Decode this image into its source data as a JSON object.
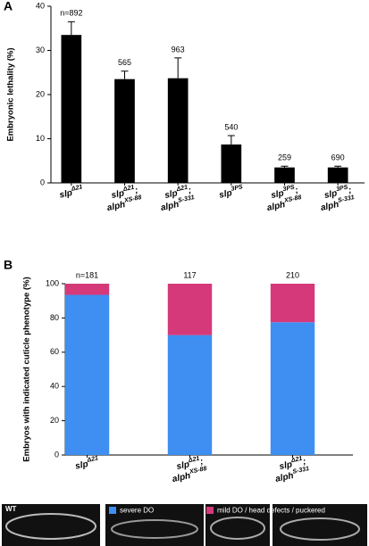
{
  "chart_data": [
    {
      "type": "bar",
      "panel": "A",
      "y_label": "Embryonic lethality (%)",
      "categories": [
        [
          [
            "slp",
            "Δ21"
          ]
        ],
        [
          [
            "slp",
            "Δ21",
            ";"
          ],
          [
            "alph",
            "XS-88"
          ]
        ],
        [
          [
            "slp",
            "Δ21",
            ";"
          ],
          [
            "alph",
            "S-331"
          ]
        ],
        [
          [
            "slp",
            "3PS"
          ]
        ],
        [
          [
            "slp",
            "3PS",
            ";"
          ],
          [
            "alph",
            "XS-88"
          ]
        ],
        [
          [
            "slp",
            "3PS",
            ";"
          ],
          [
            "alph",
            "S-331"
          ]
        ]
      ],
      "values": [
        33.5,
        23.5,
        23.7,
        8.7,
        3.5,
        3.5
      ],
      "errors": [
        3,
        1.8,
        4.6,
        2,
        0.3,
        0.3
      ],
      "annotations": [
        "n=892",
        "565",
        "963",
        "540",
        "259",
        "690"
      ],
      "color": "#000000",
      "ylim": [
        0,
        40
      ],
      "yticks": [
        0,
        10,
        20,
        30,
        40
      ]
    },
    {
      "type": "stacked_bar",
      "panel": "B",
      "y_label": "Embryos with indicated cuticle phenotype (%)",
      "categories": [
        [
          [
            "slp",
            "Δ21"
          ]
        ],
        [
          [
            "slp",
            "Δ21",
            ";"
          ],
          [
            "alph",
            "XS-88"
          ]
        ],
        [
          [
            "slp",
            "Δ21",
            ";"
          ],
          [
            "alph",
            "S-331"
          ]
        ]
      ],
      "series": [
        {
          "name": "severe DO",
          "color": "#3f8ef2",
          "values": [
            93.5,
            70,
            77.5
          ]
        },
        {
          "name": "mild DO / head defects / puckered",
          "color": "#d6397a",
          "values": [
            6.5,
            30,
            22.5
          ]
        }
      ],
      "annotations": [
        "n=181",
        "117",
        "210"
      ],
      "ylim": [
        0,
        100
      ],
      "yticks": [
        0,
        20,
        40,
        60,
        80,
        100
      ],
      "image_label": "WT"
    }
  ]
}
